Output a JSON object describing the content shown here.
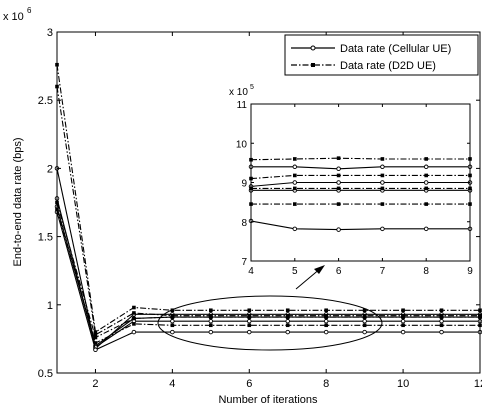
{
  "chart_data": [
    {
      "type": "line",
      "xlabel": "Number of iterations",
      "ylabel": "End-to-end data rate (bps)",
      "y_multiplier_label": "x 10",
      "y_multiplier_exponent": "6",
      "xlim": [
        1,
        12
      ],
      "ylim": [
        0.5,
        3
      ],
      "xticks": [
        2,
        4,
        6,
        8,
        10,
        12
      ],
      "yticks": [
        0.5,
        1,
        1.5,
        2,
        2.5,
        3
      ],
      "legend_position": "top-right",
      "legend": [
        {
          "label": "Data rate (Cellular UE)",
          "style": "solid",
          "marker": "circle"
        },
        {
          "label": "Data rate (D2D UE)",
          "style": "dashdot",
          "marker": "square"
        }
      ],
      "x": [
        1,
        2,
        3,
        4,
        5,
        6,
        7,
        8,
        9,
        10,
        11,
        12
      ],
      "series": [
        {
          "style": "solid",
          "marker": "circle",
          "values": [
            2.0,
            0.68,
            0.93,
            0.93,
            0.93,
            0.93,
            0.93,
            0.93,
            0.93,
            0.93,
            0.93,
            0.93
          ]
        },
        {
          "style": "solid",
          "marker": "circle",
          "values": [
            1.72,
            0.7,
            0.9,
            0.91,
            0.91,
            0.91,
            0.91,
            0.91,
            0.91,
            0.91,
            0.91,
            0.91
          ]
        },
        {
          "style": "solid",
          "marker": "circle",
          "values": [
            1.78,
            0.69,
            0.88,
            0.88,
            0.88,
            0.88,
            0.88,
            0.88,
            0.88,
            0.88,
            0.88,
            0.88
          ]
        },
        {
          "style": "solid",
          "marker": "circle",
          "values": [
            1.68,
            0.67,
            0.8,
            0.8,
            0.8,
            0.8,
            0.8,
            0.8,
            0.8,
            0.8,
            0.8,
            0.8
          ]
        },
        {
          "style": "dashdot",
          "marker": "square",
          "values": [
            2.76,
            0.8,
            0.98,
            0.96,
            0.96,
            0.96,
            0.96,
            0.96,
            0.96,
            0.96,
            0.96,
            0.96
          ]
        },
        {
          "style": "dashdot",
          "marker": "square",
          "values": [
            2.6,
            0.78,
            0.94,
            0.92,
            0.92,
            0.92,
            0.92,
            0.92,
            0.92,
            0.92,
            0.92,
            0.92
          ]
        },
        {
          "style": "dashdot",
          "marker": "square",
          "values": [
            1.75,
            0.76,
            0.9,
            0.91,
            0.91,
            0.91,
            0.91,
            0.91,
            0.91,
            0.91,
            0.91,
            0.91
          ]
        },
        {
          "style": "dashdot",
          "marker": "square",
          "values": [
            1.7,
            0.72,
            0.86,
            0.85,
            0.85,
            0.85,
            0.85,
            0.85,
            0.85,
            0.85,
            0.85,
            0.85
          ]
        }
      ]
    },
    {
      "type": "line",
      "inset": true,
      "y_multiplier_label": "x 10",
      "y_multiplier_exponent": "5",
      "xlim": [
        4,
        9
      ],
      "ylim": [
        7,
        11
      ],
      "xticks": [
        4,
        5,
        6,
        7,
        8,
        9
      ],
      "yticks": [
        7,
        8,
        9,
        10,
        11
      ],
      "x": [
        4,
        5,
        6,
        7,
        8,
        9
      ],
      "series": [
        {
          "style": "solid",
          "marker": "circle",
          "values": [
            9.4,
            9.4,
            9.35,
            9.4,
            9.4,
            9.4
          ]
        },
        {
          "style": "solid",
          "marker": "circle",
          "values": [
            8.9,
            9.0,
            9.0,
            9.0,
            9.0,
            9.0
          ]
        },
        {
          "style": "solid",
          "marker": "circle",
          "values": [
            8.8,
            8.8,
            8.8,
            8.8,
            8.8,
            8.8
          ]
        },
        {
          "style": "solid",
          "marker": "circle",
          "values": [
            8.02,
            7.82,
            7.8,
            7.82,
            7.82,
            7.82
          ]
        },
        {
          "style": "dashdot",
          "marker": "square",
          "values": [
            9.58,
            9.6,
            9.62,
            9.6,
            9.6,
            9.6
          ]
        },
        {
          "style": "dashdot",
          "marker": "square",
          "values": [
            9.1,
            9.18,
            9.18,
            9.18,
            9.18,
            9.18
          ]
        },
        {
          "style": "dashdot",
          "marker": "square",
          "values": [
            8.85,
            8.85,
            8.85,
            8.85,
            8.85,
            8.85
          ]
        },
        {
          "style": "dashdot",
          "marker": "square",
          "values": [
            8.45,
            8.45,
            8.45,
            8.45,
            8.45,
            8.45
          ]
        }
      ]
    }
  ]
}
